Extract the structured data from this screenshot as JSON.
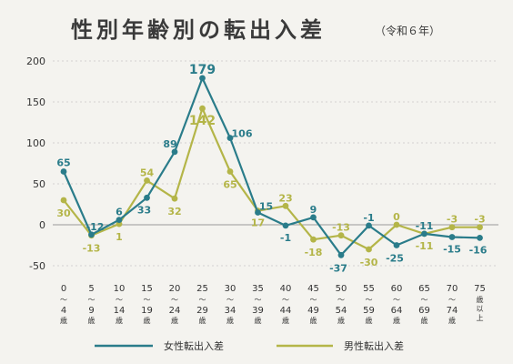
{
  "chart_data": {
    "type": "line",
    "title": "性別年齢別の転出入差",
    "subtitle": "（令和６年）",
    "categories": [
      [
        "0",
        "4"
      ],
      [
        "5",
        "9"
      ],
      [
        "10",
        "14"
      ],
      [
        "15",
        "19"
      ],
      [
        "20",
        "24"
      ],
      [
        "25",
        "29"
      ],
      [
        "30",
        "34"
      ],
      [
        "35",
        "39"
      ],
      [
        "40",
        "44"
      ],
      [
        "45",
        "49"
      ],
      [
        "50",
        "54"
      ],
      [
        "55",
        "59"
      ],
      [
        "60",
        "64"
      ],
      [
        "65",
        "69"
      ],
      [
        "70",
        "74"
      ],
      [
        "75"
      ]
    ],
    "category_tilde": "～",
    "category_suffix": "歳",
    "category_last_suffix": [
      "歳",
      "以",
      "上"
    ],
    "yticks": [
      200,
      150,
      100,
      50,
      0,
      -50
    ],
    "ylim": [
      -50,
      200
    ],
    "grid": true,
    "legend_position": "bottom",
    "series": [
      {
        "name": "女性転出入差",
        "color": "#2a7c8a",
        "values": [
          65,
          -12,
          6,
          33,
          89,
          179,
          106,
          15,
          -1,
          9,
          -37,
          -1,
          -25,
          -11,
          -15,
          -16
        ],
        "labels": [
          "65",
          "-12",
          "6",
          "33",
          "89",
          "179",
          "106",
          "15",
          "-1",
          "9",
          "-37",
          "-1",
          "-25",
          "-11",
          "-15",
          "-16"
        ]
      },
      {
        "name": "男性転出入差",
        "color": "#b4b548",
        "values": [
          30,
          -13,
          1,
          54,
          32,
          142,
          65,
          17,
          23,
          -18,
          -13,
          -30,
          0,
          -11,
          -3,
          -3
        ],
        "labels": [
          "30",
          "-13",
          "1",
          "54",
          "32",
          "142",
          "65",
          "17",
          "23",
          "-18",
          "-13",
          "-30",
          "0",
          "-11",
          "-3",
          "-3"
        ]
      }
    ]
  }
}
